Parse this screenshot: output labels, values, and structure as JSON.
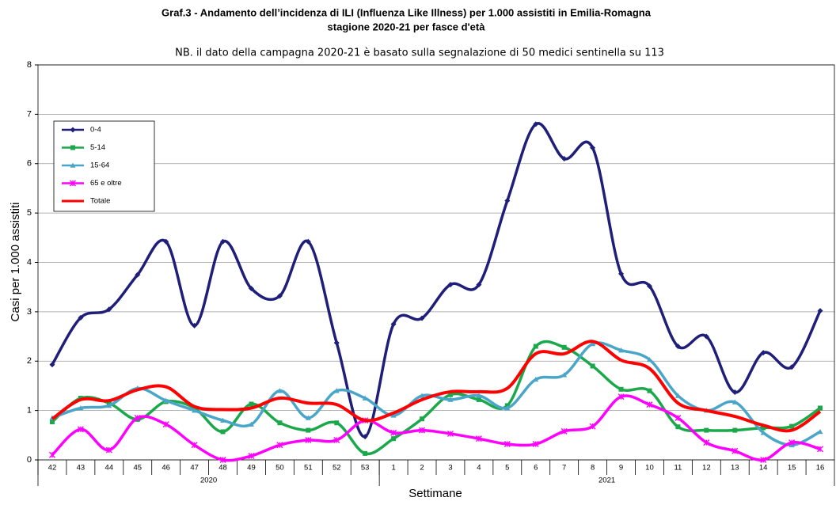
{
  "chart_data": {
    "type": "line",
    "title": "Graf.3 - Andamento dell’incidenza di ILI (Influenza Like Illness) per 1.000 assistiti in Emilia-Romagna",
    "subtitle": "stagione 2020-21 per fasce d'età",
    "note": "NB. il dato della campagna 2020-21 è basato sulla segnalazione di 50 medici sentinella su 113",
    "y_label": "Casi per 1.000 assistiti",
    "x_label": "Settimane",
    "categories": [
      "42",
      "43",
      "44",
      "45",
      "46",
      "47",
      "48",
      "49",
      "50",
      "51",
      "52",
      "53",
      "1",
      "2",
      "3",
      "4",
      "5",
      "6",
      "7",
      "8",
      "9",
      "10",
      "11",
      "12",
      "13",
      "14",
      "15",
      "16"
    ],
    "x_groups": [
      {
        "label": "2020",
        "count": 12
      },
      {
        "label": "2021",
        "count": 16
      }
    ],
    "ylim": [
      0,
      8
    ],
    "yticks": [
      0,
      1,
      2,
      3,
      4,
      5,
      6,
      7,
      8
    ],
    "grid": true,
    "smooth": true,
    "series": [
      {
        "name": "0-4",
        "color": "#1f1f7a",
        "marker": "diamond",
        "values": [
          1.93,
          2.88,
          3.05,
          3.75,
          4.42,
          2.72,
          4.42,
          3.47,
          3.32,
          4.42,
          2.37,
          0.47,
          2.75,
          2.87,
          3.55,
          3.55,
          5.25,
          6.8,
          6.1,
          6.32,
          3.77,
          3.52,
          2.3,
          2.5,
          1.37,
          2.17,
          1.88,
          3.02
        ]
      },
      {
        "name": "5-14",
        "color": "#1aa84a",
        "marker": "square",
        "values": [
          0.77,
          1.25,
          1.15,
          0.82,
          1.18,
          1.05,
          0.57,
          1.13,
          0.75,
          0.6,
          0.75,
          0.13,
          0.43,
          0.83,
          1.32,
          1.22,
          1.1,
          2.3,
          2.28,
          1.9,
          1.43,
          1.4,
          0.67,
          0.6,
          0.6,
          0.65,
          0.68,
          1.05
        ]
      },
      {
        "name": "15-64",
        "color": "#4aa6c8",
        "marker": "triangle",
        "values": [
          0.85,
          1.05,
          1.1,
          1.45,
          1.2,
          1.0,
          0.8,
          0.72,
          1.4,
          0.85,
          1.4,
          1.25,
          0.9,
          1.3,
          1.22,
          1.3,
          1.05,
          1.63,
          1.72,
          2.35,
          2.22,
          2.03,
          1.3,
          1.0,
          1.17,
          0.55,
          0.3,
          0.57
        ]
      },
      {
        "name": "65 e oltre",
        "color": "#ff00ff",
        "marker": "star",
        "values": [
          0.1,
          0.62,
          0.2,
          0.85,
          0.72,
          0.3,
          0.0,
          0.08,
          0.3,
          0.4,
          0.4,
          0.8,
          0.55,
          0.6,
          0.53,
          0.43,
          0.32,
          0.32,
          0.58,
          0.68,
          1.28,
          1.12,
          0.85,
          0.35,
          0.18,
          0.0,
          0.35,
          0.22
        ]
      },
      {
        "name": "Totale",
        "color": "#ff0000",
        "marker": "none",
        "values": [
          0.83,
          1.22,
          1.2,
          1.42,
          1.48,
          1.08,
          1.02,
          1.05,
          1.25,
          1.15,
          1.12,
          0.8,
          0.95,
          1.22,
          1.38,
          1.38,
          1.45,
          2.15,
          2.15,
          2.4,
          2.02,
          1.85,
          1.15,
          1.0,
          0.88,
          0.7,
          0.6,
          0.98
        ]
      }
    ]
  }
}
